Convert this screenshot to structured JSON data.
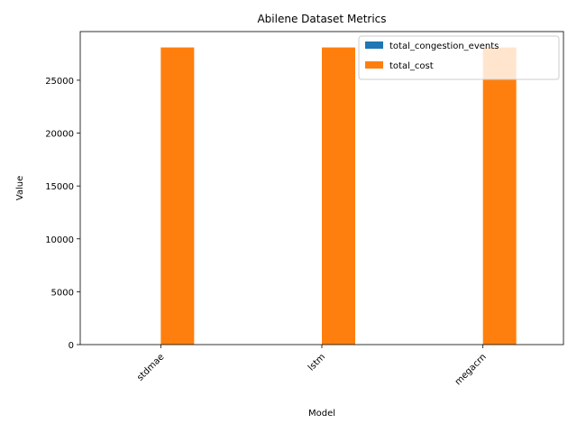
{
  "chart_data": {
    "type": "bar",
    "title": "Abilene Dataset Metrics",
    "xlabel": "Model",
    "ylabel": "Value",
    "categories": [
      "stdmae",
      "lstm",
      "megacrn"
    ],
    "series": [
      {
        "name": "total_congestion_events",
        "color": "#1f77b4",
        "values": [
          0,
          0,
          0
        ]
      },
      {
        "name": "total_cost",
        "color": "#ff7f0e",
        "values": [
          28100,
          28100,
          28100
        ]
      }
    ],
    "ylim": [
      0,
      29600
    ],
    "yticks": [
      0,
      5000,
      10000,
      15000,
      20000,
      25000
    ],
    "grid": false,
    "legend_position": "top-right"
  }
}
